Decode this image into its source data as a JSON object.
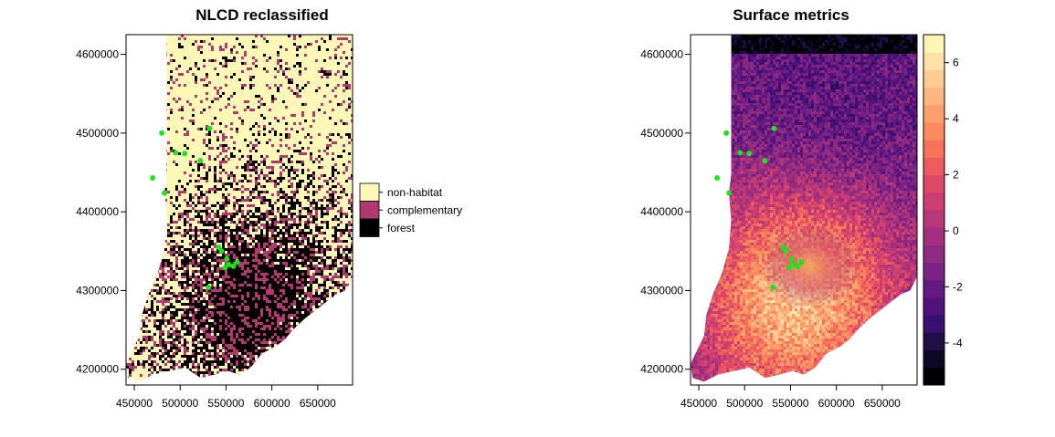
{
  "chart_data": [
    {
      "type": "heatmap",
      "title": "NLCD reclassified",
      "xlabel": "",
      "ylabel": "",
      "xlim": [
        441000,
        688000
      ],
      "ylim": [
        4180000,
        4625000
      ],
      "x_ticks": [
        450000,
        500000,
        550000,
        600000,
        650000
      ],
      "x_tick_labels": [
        "450000",
        "500000",
        "550000",
        "600000",
        "650000"
      ],
      "y_ticks": [
        4200000,
        4300000,
        4400000,
        4500000,
        4600000
      ],
      "y_tick_labels": [
        "4200000",
        "4300000",
        "4400000",
        "4500000",
        "4600000"
      ],
      "grid": false,
      "legend_position": "right",
      "legend": [
        {
          "label": "non-habitat",
          "color": "#fcf8b8"
        },
        {
          "label": "complementary",
          "color": "#b0396d"
        },
        {
          "label": "forest",
          "color": "#000000"
        }
      ],
      "points_color": "#19e619",
      "points": [
        [
          480000,
          4500000
        ],
        [
          495000,
          4475000
        ],
        [
          505000,
          4474000
        ],
        [
          522000,
          4465000
        ],
        [
          470000,
          4443000
        ],
        [
          483000,
          4424000
        ],
        [
          542000,
          4355000
        ],
        [
          545000,
          4350000
        ],
        [
          551000,
          4340000
        ],
        [
          553000,
          4333000
        ],
        [
          558000,
          4331000
        ],
        [
          549000,
          4329000
        ],
        [
          562000,
          4336000
        ],
        [
          531000,
          4304000
        ],
        [
          532000,
          4506000
        ]
      ]
    },
    {
      "type": "heatmap",
      "title": "Surface metrics",
      "xlabel": "",
      "ylabel": "",
      "xlim": [
        441000,
        688000
      ],
      "ylim": [
        4180000,
        4625000
      ],
      "x_ticks": [
        450000,
        500000,
        550000,
        600000,
        650000
      ],
      "x_tick_labels": [
        "450000",
        "500000",
        "550000",
        "600000",
        "650000"
      ],
      "y_ticks": [
        4200000,
        4300000,
        4400000,
        4500000,
        4600000
      ],
      "y_tick_labels": [
        "4200000",
        "4300000",
        "4400000",
        "4500000",
        "4600000"
      ],
      "grid": false,
      "colorbar": {
        "min": -5.5,
        "max": 7,
        "ticks": [
          6,
          4,
          2,
          0,
          -2,
          -4
        ],
        "tick_labels": [
          "6",
          "4",
          "2",
          "0",
          "-2",
          "-4"
        ],
        "colors": [
          "#000004",
          "#0c0826",
          "#1e0f44",
          "#3b0f70",
          "#51127c",
          "#641a80",
          "#7b2382",
          "#8f2a81",
          "#a3307e",
          "#b73779",
          "#cb3e72",
          "#de4968",
          "#ee5b5e",
          "#f5735b",
          "#f98b5e",
          "#fca06b",
          "#feb67e",
          "#fecc93",
          "#fde1a6",
          "#fcf4b4"
        ]
      },
      "points_color": "#19e619",
      "points": [
        [
          480000,
          4500000
        ],
        [
          495000,
          4475000
        ],
        [
          505000,
          4474000
        ],
        [
          522000,
          4465000
        ],
        [
          470000,
          4443000
        ],
        [
          483000,
          4424000
        ],
        [
          542000,
          4355000
        ],
        [
          545000,
          4350000
        ],
        [
          551000,
          4340000
        ],
        [
          553000,
          4333000
        ],
        [
          558000,
          4331000
        ],
        [
          549000,
          4329000
        ],
        [
          562000,
          4336000
        ],
        [
          531000,
          4304000
        ],
        [
          532000,
          4506000
        ]
      ]
    }
  ]
}
